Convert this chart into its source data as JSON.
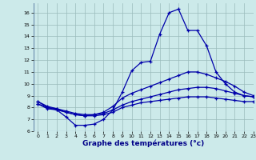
{
  "title": "",
  "xlabel": "Graphe des températures (°c)",
  "ylabel": "",
  "bg_color": "#cceaea",
  "line_color": "#0000aa",
  "grid_color": "#99bbbb",
  "xlim": [
    -0.5,
    23
  ],
  "ylim": [
    6,
    16.8
  ],
  "yticks": [
    6,
    7,
    8,
    9,
    10,
    11,
    12,
    13,
    14,
    15,
    16
  ],
  "xticks": [
    0,
    1,
    2,
    3,
    4,
    5,
    6,
    7,
    8,
    9,
    10,
    11,
    12,
    13,
    14,
    15,
    16,
    17,
    18,
    19,
    20,
    21,
    22,
    23
  ],
  "series": [
    {
      "x": [
        0,
        1,
        2,
        3,
        4,
        5,
        6,
        7,
        8,
        9,
        10,
        11,
        12,
        13,
        14,
        15,
        16,
        17,
        18,
        19,
        20,
        21,
        22,
        23
      ],
      "y": [
        8.5,
        8.0,
        7.8,
        7.2,
        6.5,
        6.5,
        6.6,
        7.0,
        7.8,
        9.3,
        11.1,
        11.8,
        11.9,
        14.2,
        16.0,
        16.3,
        14.5,
        14.5,
        13.2,
        11.0,
        10.0,
        9.3,
        9.0,
        8.9
      ]
    },
    {
      "x": [
        0,
        1,
        2,
        3,
        4,
        5,
        6,
        7,
        8,
        9,
        10,
        11,
        12,
        13,
        14,
        15,
        16,
        17,
        18,
        19,
        20,
        21,
        22,
        23
      ],
      "y": [
        8.5,
        8.1,
        7.9,
        7.6,
        7.4,
        7.3,
        7.4,
        7.6,
        8.1,
        8.8,
        9.2,
        9.5,
        9.8,
        10.1,
        10.4,
        10.7,
        11.0,
        11.0,
        10.8,
        10.5,
        10.2,
        9.8,
        9.3,
        9.0
      ]
    },
    {
      "x": [
        0,
        1,
        2,
        3,
        4,
        5,
        6,
        7,
        8,
        9,
        10,
        11,
        12,
        13,
        14,
        15,
        16,
        17,
        18,
        19,
        20,
        21,
        22,
        23
      ],
      "y": [
        8.3,
        8.0,
        7.9,
        7.7,
        7.5,
        7.4,
        7.4,
        7.5,
        7.8,
        8.2,
        8.5,
        8.7,
        8.9,
        9.1,
        9.3,
        9.5,
        9.6,
        9.7,
        9.7,
        9.6,
        9.4,
        9.2,
        9.0,
        8.9
      ]
    },
    {
      "x": [
        0,
        1,
        2,
        3,
        4,
        5,
        6,
        7,
        8,
        9,
        10,
        11,
        12,
        13,
        14,
        15,
        16,
        17,
        18,
        19,
        20,
        21,
        22,
        23
      ],
      "y": [
        8.3,
        7.9,
        7.8,
        7.6,
        7.4,
        7.3,
        7.3,
        7.4,
        7.6,
        8.0,
        8.2,
        8.4,
        8.5,
        8.6,
        8.7,
        8.8,
        8.9,
        8.9,
        8.9,
        8.8,
        8.7,
        8.6,
        8.5,
        8.5
      ]
    }
  ]
}
